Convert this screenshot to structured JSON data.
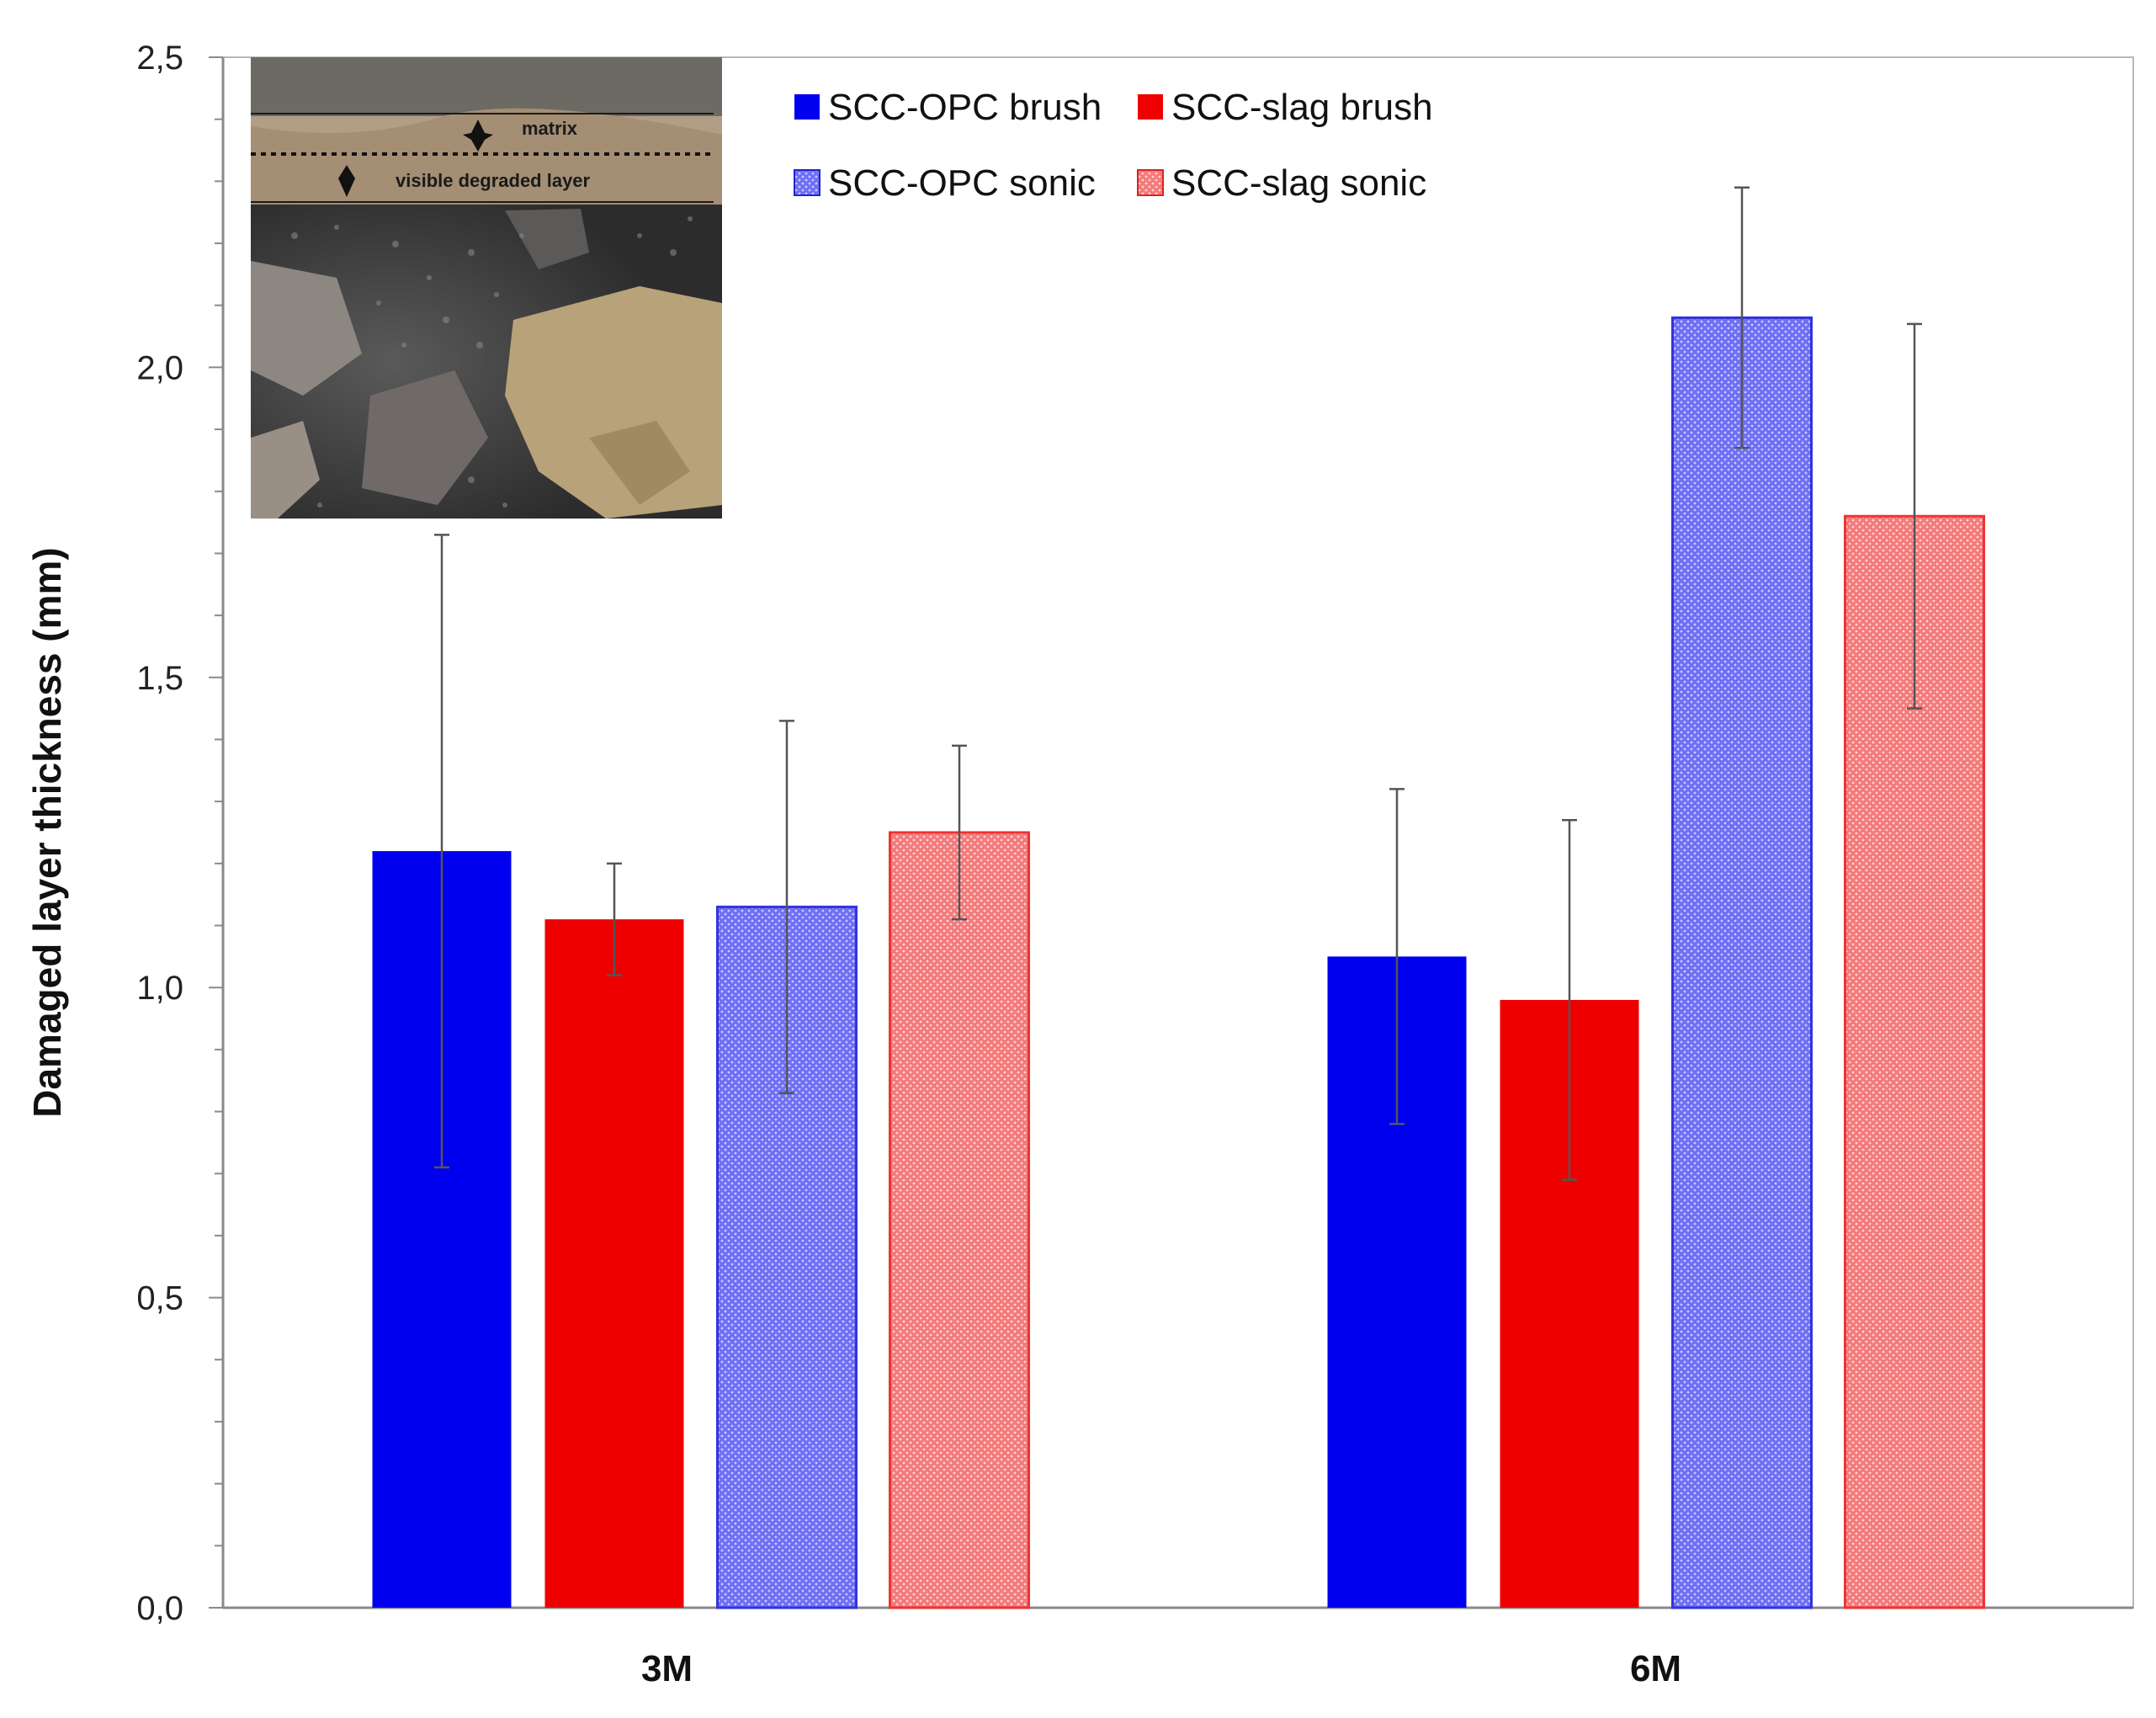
{
  "chart_data": {
    "type": "bar",
    "title": "",
    "xlabel": "",
    "ylabel": "Damaged layer thickness (mm)",
    "ylim": [
      0,
      2.5
    ],
    "yticks": [
      "0,0",
      "0,5",
      "1,0",
      "1,5",
      "2,0",
      "2,5"
    ],
    "ytick_values": [
      0,
      0.5,
      1.0,
      1.5,
      2.0,
      2.5
    ],
    "categories": [
      "3M",
      "6M"
    ],
    "series": [
      {
        "name": "SCC-OPC brush",
        "values": [
          1.22,
          1.05
        ],
        "errors": [
          0.51,
          0.27
        ],
        "color": "#0000ee",
        "pattern": "solid"
      },
      {
        "name": "SCC-slag brush",
        "values": [
          1.11,
          0.98
        ],
        "errors": [
          0.09,
          0.29
        ],
        "color": "#ee0000",
        "pattern": "solid"
      },
      {
        "name": "SCC-OPC sonic",
        "values": [
          1.13,
          2.08
        ],
        "errors": [
          0.3,
          0.21
        ],
        "color": "#3333dd",
        "pattern": "dotted"
      },
      {
        "name": "SCC-slag sonic",
        "values": [
          1.25,
          1.76
        ],
        "errors": [
          0.14,
          0.31
        ],
        "color": "#ee3333",
        "pattern": "dotted"
      }
    ],
    "legend": "top-center",
    "grid": false,
    "inset": {
      "description_labels": [
        "matrix",
        "visible degraded layer"
      ]
    }
  }
}
